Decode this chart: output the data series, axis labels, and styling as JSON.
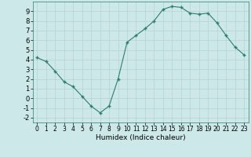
{
  "x": [
    0,
    1,
    2,
    3,
    4,
    5,
    6,
    7,
    8,
    9,
    10,
    11,
    12,
    13,
    14,
    15,
    16,
    17,
    18,
    19,
    20,
    21,
    22,
    23
  ],
  "y": [
    4.2,
    3.8,
    2.8,
    1.7,
    1.2,
    0.2,
    -0.8,
    -1.5,
    -0.8,
    2.0,
    5.8,
    6.5,
    7.2,
    8.0,
    9.2,
    9.5,
    9.4,
    8.8,
    8.7,
    8.8,
    7.8,
    6.5,
    5.3,
    4.5
  ],
  "xlabel": "Humidex (Indice chaleur)",
  "xlim": [
    -0.5,
    23.5
  ],
  "ylim": [
    -2.5,
    10.0
  ],
  "xticks": [
    0,
    1,
    2,
    3,
    4,
    5,
    6,
    7,
    8,
    9,
    10,
    11,
    12,
    13,
    14,
    15,
    16,
    17,
    18,
    19,
    20,
    21,
    22,
    23
  ],
  "yticks": [
    -2,
    -1,
    0,
    1,
    2,
    3,
    4,
    5,
    6,
    7,
    8,
    9
  ],
  "line_color": "#2e7d6e",
  "marker_color": "#2e7d6e",
  "bg_color": "#cce8e8",
  "grid_color": "#b8d8d8",
  "grid_major_color": "#c8e0e0"
}
